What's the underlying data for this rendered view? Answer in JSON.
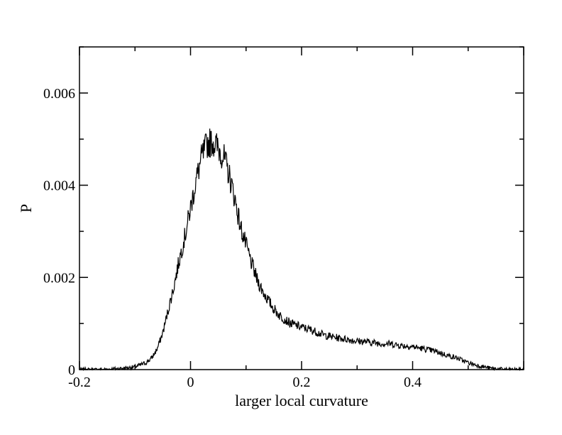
{
  "chart_data": {
    "type": "line",
    "title": "",
    "xlabel": "larger local curvature",
    "ylabel": "P",
    "xlim": [
      -0.2,
      0.6
    ],
    "ylim": [
      0,
      0.007
    ],
    "grid": false,
    "legend": "none",
    "x_ticks": [
      {
        "value": -0.2,
        "label": "-0.2"
      },
      {
        "value": 0,
        "label": "0"
      },
      {
        "value": 0.2,
        "label": "0.2"
      },
      {
        "value": 0.4,
        "label": "0.4"
      }
    ],
    "x_minor_step": 0.1,
    "y_ticks": [
      {
        "value": 0,
        "label": "0"
      },
      {
        "value": 0.002,
        "label": "0.002"
      },
      {
        "value": 0.004,
        "label": "0.004"
      },
      {
        "value": 0.006,
        "label": "0.006"
      }
    ],
    "y_minor_step": 0.001,
    "line_color": "#000000",
    "series": [
      {
        "x": [
          -0.2,
          -0.16,
          -0.12,
          -0.1,
          -0.08,
          -0.07,
          -0.06,
          -0.05,
          -0.04,
          -0.03,
          -0.02,
          -0.01,
          0,
          0.01,
          0.02,
          0.03,
          0.04,
          0.05,
          0.06,
          0.07,
          0.08,
          0.09,
          0.1,
          0.11,
          0.12,
          0.13,
          0.14,
          0.15,
          0.16,
          0.18,
          0.2,
          0.22,
          0.24,
          0.26,
          0.28,
          0.3,
          0.32,
          0.34,
          0.36,
          0.38,
          0.4,
          0.42,
          0.44,
          0.46,
          0.48,
          0.5,
          0.52,
          0.54,
          0.56,
          0.58,
          0.6
        ],
        "y": [
          0.0,
          0.0,
          3e-05,
          6e-05,
          0.00015,
          0.00025,
          0.00045,
          0.0008,
          0.0013,
          0.0018,
          0.0024,
          0.0029,
          0.0035,
          0.0041,
          0.0046,
          0.0049,
          0.00495,
          0.0048,
          0.0046,
          0.0042,
          0.0037,
          0.0031,
          0.0027,
          0.0023,
          0.00195,
          0.0017,
          0.0015,
          0.00132,
          0.00118,
          0.001,
          0.00092,
          0.00085,
          0.00075,
          0.0007,
          0.00066,
          0.00062,
          0.0006,
          0.00057,
          0.00056,
          0.00052,
          0.0005,
          0.00045,
          0.0004,
          0.00032,
          0.00025,
          0.00015,
          8e-05,
          3e-05,
          1e-05,
          0.0,
          0.0
        ]
      }
    ]
  }
}
